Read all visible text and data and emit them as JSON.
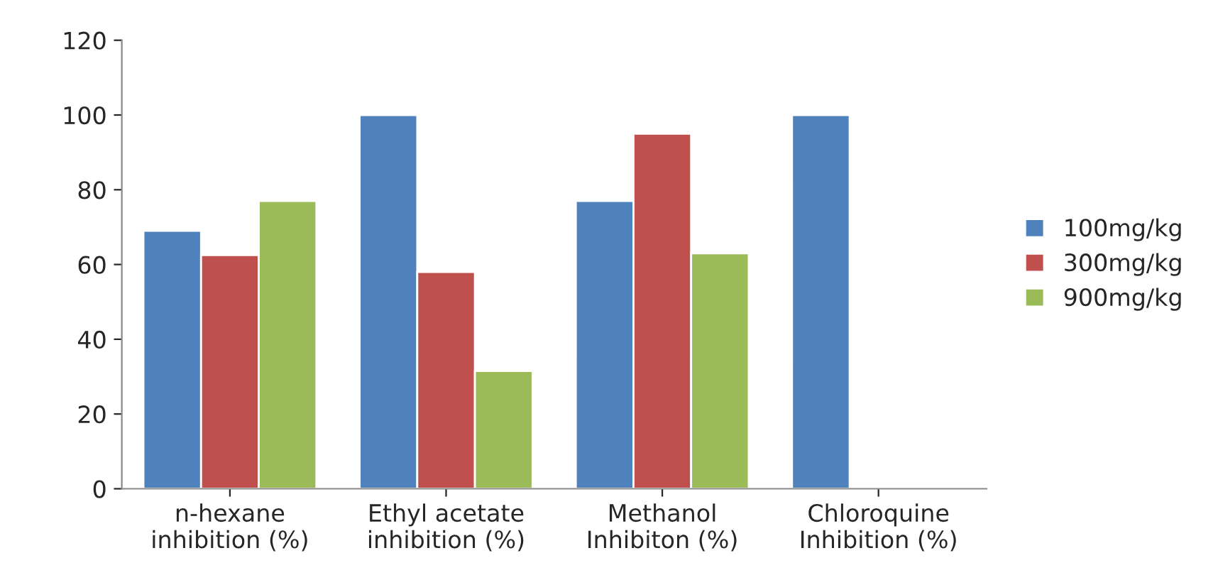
{
  "chart_data": {
    "type": "bar",
    "categories": [
      "n-hexane\ninhibition (%)",
      "Ethyl acetate\ninhibition (%)",
      "Methanol\nInhibiton (%)",
      "Chloroquine\nInhibition (%)"
    ],
    "series": [
      {
        "name": "100mg/kg",
        "color": "#4f81bd",
        "values": [
          69,
          100,
          77,
          100
        ]
      },
      {
        "name": "300mg/kg",
        "color": "#c0504d",
        "values": [
          62.5,
          58,
          95,
          null
        ]
      },
      {
        "name": "900mg/kg",
        "color": "#9bbb59",
        "values": [
          77,
          31.5,
          63,
          null
        ]
      }
    ],
    "ylim": [
      0,
      120
    ],
    "yticks": [
      0,
      20,
      40,
      60,
      80,
      100,
      120
    ],
    "grid": false,
    "legend": "right"
  }
}
